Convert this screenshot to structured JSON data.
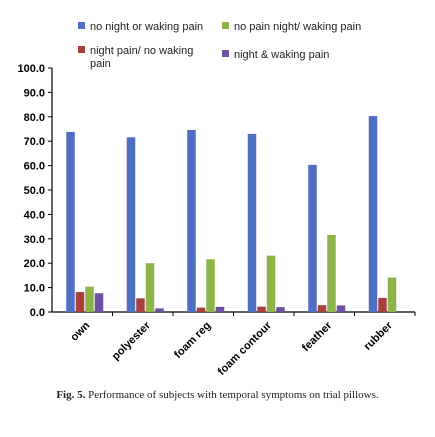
{
  "chart_data": {
    "type": "bar",
    "categories": [
      "own",
      "polyester",
      "foam reg",
      "foam contour",
      "feather",
      "rubber"
    ],
    "series": [
      {
        "name": "no night or waking pain",
        "color": "#4f6fc3",
        "values": [
          73.8,
          71.6,
          74.6,
          73.0,
          60.3,
          80.3
        ]
      },
      {
        "name": "night pain/ no waking pain",
        "color": "#a8403e",
        "values": [
          8.2,
          5.6,
          1.8,
          2.2,
          2.8,
          5.8
        ]
      },
      {
        "name": "no pain night/ waking pain",
        "color": "#8db34a",
        "values": [
          10.4,
          20.0,
          21.6,
          23.1,
          31.6,
          14.1
        ]
      },
      {
        "name": "night & waking pain",
        "color": "#6e51a0",
        "values": [
          7.7,
          1.5,
          2.1,
          2.0,
          2.7,
          0
        ]
      }
    ],
    "ylim": [
      0,
      100
    ],
    "yticks": [
      "0.0",
      "10.0",
      "20.0",
      "30.0",
      "40.0",
      "50.0",
      "60.0",
      "70.0",
      "80.0",
      "90.0",
      "100.0"
    ],
    "xlabel": "",
    "ylabel": "",
    "legend_position": "top",
    "grid": false
  },
  "caption": {
    "label": "Fig. 5.",
    "text": " Performance of subjects with temporal symptoms on trial pillows."
  }
}
